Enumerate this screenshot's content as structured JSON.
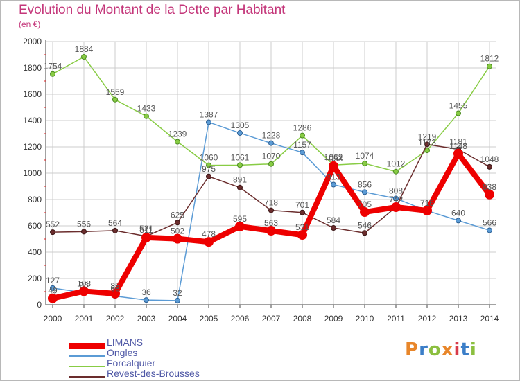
{
  "title": "Evolution du Montant de la Dette par Habitant",
  "subtitle": "(en €)",
  "logo": "Proxiti",
  "colors": {
    "title": "#c4367a",
    "grid": "#cccccc",
    "axis_text": "#333333",
    "value_text": "#555555",
    "legend_text": "#4f58a6"
  },
  "chart_data": {
    "type": "line",
    "title": "Evolution du Montant de la Dette par Habitant",
    "ylabel": "(en €)",
    "xlabel": "",
    "x": [
      "2000",
      "2001",
      "2002",
      "2003",
      "2004",
      "2005",
      "2006",
      "2007",
      "2008",
      "2009",
      "2010",
      "2011",
      "2012",
      "2013",
      "2014"
    ],
    "yticks": [
      "0",
      "200",
      "400",
      "600",
      "800",
      "1000",
      "1200",
      "1400",
      "1600",
      "1800",
      "2000"
    ],
    "ylim": [
      0,
      2000
    ],
    "grid": true,
    "legend_position": "bottom-left",
    "series": [
      {
        "name": "Forcalquier",
        "color": "#88cc44",
        "values": [
          1754,
          1884,
          1559,
          1433,
          1239,
          1060,
          1061,
          1070,
          1286,
          1062,
          1074,
          1012,
          1173,
          1455,
          1812
        ]
      },
      {
        "name": "Ongles",
        "color": "#5b9bd5",
        "values": [
          127,
          93,
          66,
          36,
          32,
          1387,
          1305,
          1228,
          1157,
          913,
          856,
          808,
          715,
          640,
          566
        ]
      },
      {
        "name": "Revest-des-Brousses",
        "color": "#6b2d2d",
        "values": [
          552,
          556,
          564,
          521,
          625,
          975,
          891,
          718,
          701,
          584,
          546,
          742,
          1219,
          1181,
          1048
        ]
      },
      {
        "name": "LIMANS",
        "color": "#ee0000",
        "values": [
          49,
          103,
          85,
          511,
          502,
          478,
          595,
          563,
          531,
          1053,
          705,
          742,
          716,
          1148,
          838
        ]
      }
    ],
    "value_labels": [
      {
        "series": "Forcalquier",
        "labels": [
          "1754",
          "1884",
          "1559",
          "1433",
          "1239",
          "1060",
          "1061",
          "1070",
          "1286",
          "1062",
          "1074",
          "1012",
          "1173",
          "1455",
          "1812"
        ]
      },
      {
        "series": "Ongles",
        "labels": [
          "127",
          "93",
          "66",
          "36",
          "32",
          "1387",
          "1305",
          "1228",
          "1157",
          "913",
          "856",
          "808",
          "715",
          "640",
          "566"
        ]
      },
      {
        "series": "Revest-des-Brousses",
        "labels": [
          "552",
          "556",
          "564",
          "521",
          "625",
          "975",
          "891",
          "718",
          "701",
          "584",
          "546",
          "742",
          "1219",
          "1181",
          "1048"
        ]
      },
      {
        "series": "LIMANS",
        "labels": [
          "49",
          "103",
          "85",
          "511",
          "502",
          "478",
          "595",
          "563",
          "531",
          "1053",
          "705",
          "742",
          "716",
          "1148",
          "838"
        ]
      }
    ]
  },
  "legend": {
    "items": [
      {
        "name": "LIMANS",
        "color": "#ee0000",
        "thickness": 9
      },
      {
        "name": "Ongles",
        "color": "#5b9bd5",
        "thickness": 2
      },
      {
        "name": "Forcalquier",
        "color": "#88cc44",
        "thickness": 2
      },
      {
        "name": "Revest-des-Brousses",
        "color": "#6b2d2d",
        "thickness": 2
      }
    ]
  }
}
